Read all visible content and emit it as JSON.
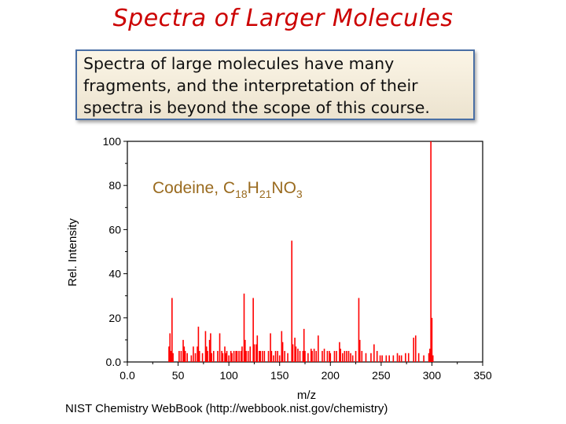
{
  "slide": {
    "title": "Spectra of Larger Molecules",
    "callout_lines": [
      "Spectra of large molecules have many",
      "fragments, and the interpretation of their",
      "spectra is beyond the scope of this course."
    ],
    "source": "NIST Chemistry WebBook (http://webbook.nist.gov/chemistry)"
  },
  "colors": {
    "title": "#cc0000",
    "peaks": "#ff0000",
    "compound": "#9a6b1f",
    "callout_border": "#4a6fa5"
  },
  "chart_data": {
    "type": "bar",
    "compound_label": {
      "name": "Codeine, ",
      "parts": [
        {
          "t": "C",
          "sub": false
        },
        {
          "t": "18",
          "sub": true
        },
        {
          "t": "H",
          "sub": false
        },
        {
          "t": "21",
          "sub": true
        },
        {
          "t": "NO",
          "sub": false
        },
        {
          "t": "3",
          "sub": true
        }
      ]
    },
    "xlabel": "m/z",
    "ylabel": "Rel. Intensity",
    "xlim": [
      0,
      350
    ],
    "ylim": [
      0,
      100
    ],
    "xticks": [
      "0.0",
      "50",
      "100",
      "150",
      "200",
      "250",
      "300",
      "350"
    ],
    "yticks": [
      "0.0",
      "20",
      "40",
      "60",
      "80",
      "100"
    ],
    "grid": false,
    "peaks": [
      [
        41,
        7
      ],
      [
        42,
        13
      ],
      [
        43,
        5
      ],
      [
        44,
        29
      ],
      [
        45,
        4
      ],
      [
        51,
        5
      ],
      [
        53,
        5
      ],
      [
        55,
        10
      ],
      [
        56,
        7
      ],
      [
        57,
        5
      ],
      [
        59,
        4
      ],
      [
        63,
        3
      ],
      [
        65,
        7
      ],
      [
        67,
        4
      ],
      [
        69,
        7
      ],
      [
        70,
        16
      ],
      [
        71,
        5
      ],
      [
        74,
        4
      ],
      [
        77,
        14
      ],
      [
        78,
        7
      ],
      [
        79,
        5
      ],
      [
        81,
        10
      ],
      [
        82,
        13
      ],
      [
        83,
        4
      ],
      [
        85,
        5
      ],
      [
        89,
        5
      ],
      [
        91,
        13
      ],
      [
        93,
        5
      ],
      [
        94,
        4
      ],
      [
        96,
        7
      ],
      [
        97,
        4
      ],
      [
        98,
        5
      ],
      [
        100,
        3
      ],
      [
        102,
        5
      ],
      [
        103,
        4
      ],
      [
        105,
        5
      ],
      [
        107,
        5
      ],
      [
        108,
        5
      ],
      [
        110,
        5
      ],
      [
        112,
        5
      ],
      [
        113,
        7
      ],
      [
        115,
        31
      ],
      [
        116,
        10
      ],
      [
        117,
        5
      ],
      [
        119,
        5
      ],
      [
        121,
        7
      ],
      [
        124,
        29
      ],
      [
        125,
        8
      ],
      [
        127,
        8
      ],
      [
        128,
        12
      ],
      [
        130,
        5
      ],
      [
        131,
        5
      ],
      [
        133,
        5
      ],
      [
        135,
        5
      ],
      [
        139,
        5
      ],
      [
        141,
        13
      ],
      [
        142,
        5
      ],
      [
        144,
        3
      ],
      [
        146,
        5
      ],
      [
        148,
        5
      ],
      [
        150,
        3
      ],
      [
        152,
        14
      ],
      [
        153,
        9
      ],
      [
        155,
        5
      ],
      [
        158,
        4
      ],
      [
        162,
        55
      ],
      [
        163,
        8
      ],
      [
        165,
        11
      ],
      [
        166,
        7
      ],
      [
        168,
        6
      ],
      [
        170,
        5
      ],
      [
        173,
        5
      ],
      [
        174,
        15
      ],
      [
        175,
        5
      ],
      [
        178,
        4
      ],
      [
        181,
        6
      ],
      [
        182,
        5
      ],
      [
        184,
        6
      ],
      [
        186,
        5
      ],
      [
        188,
        12
      ],
      [
        192,
        5
      ],
      [
        194,
        6
      ],
      [
        197,
        5
      ],
      [
        199,
        5
      ],
      [
        200,
        4
      ],
      [
        204,
        5
      ],
      [
        206,
        5
      ],
      [
        209,
        9
      ],
      [
        210,
        6
      ],
      [
        212,
        4
      ],
      [
        214,
        5
      ],
      [
        216,
        5
      ],
      [
        218,
        5
      ],
      [
        220,
        4
      ],
      [
        222,
        3
      ],
      [
        225,
        5
      ],
      [
        228,
        29
      ],
      [
        229,
        10
      ],
      [
        231,
        5
      ],
      [
        235,
        4
      ],
      [
        240,
        4
      ],
      [
        243,
        8
      ],
      [
        246,
        5
      ],
      [
        249,
        3
      ],
      [
        251,
        3
      ],
      [
        255,
        3
      ],
      [
        258,
        3
      ],
      [
        262,
        3
      ],
      [
        266,
        4
      ],
      [
        268,
        3
      ],
      [
        270,
        3
      ],
      [
        274,
        4
      ],
      [
        277,
        4
      ],
      [
        282,
        11
      ],
      [
        284,
        12
      ],
      [
        287,
        4
      ],
      [
        292,
        3
      ],
      [
        297,
        4
      ],
      [
        298,
        6
      ],
      [
        299,
        100
      ],
      [
        300,
        20
      ],
      [
        301,
        3
      ]
    ]
  }
}
